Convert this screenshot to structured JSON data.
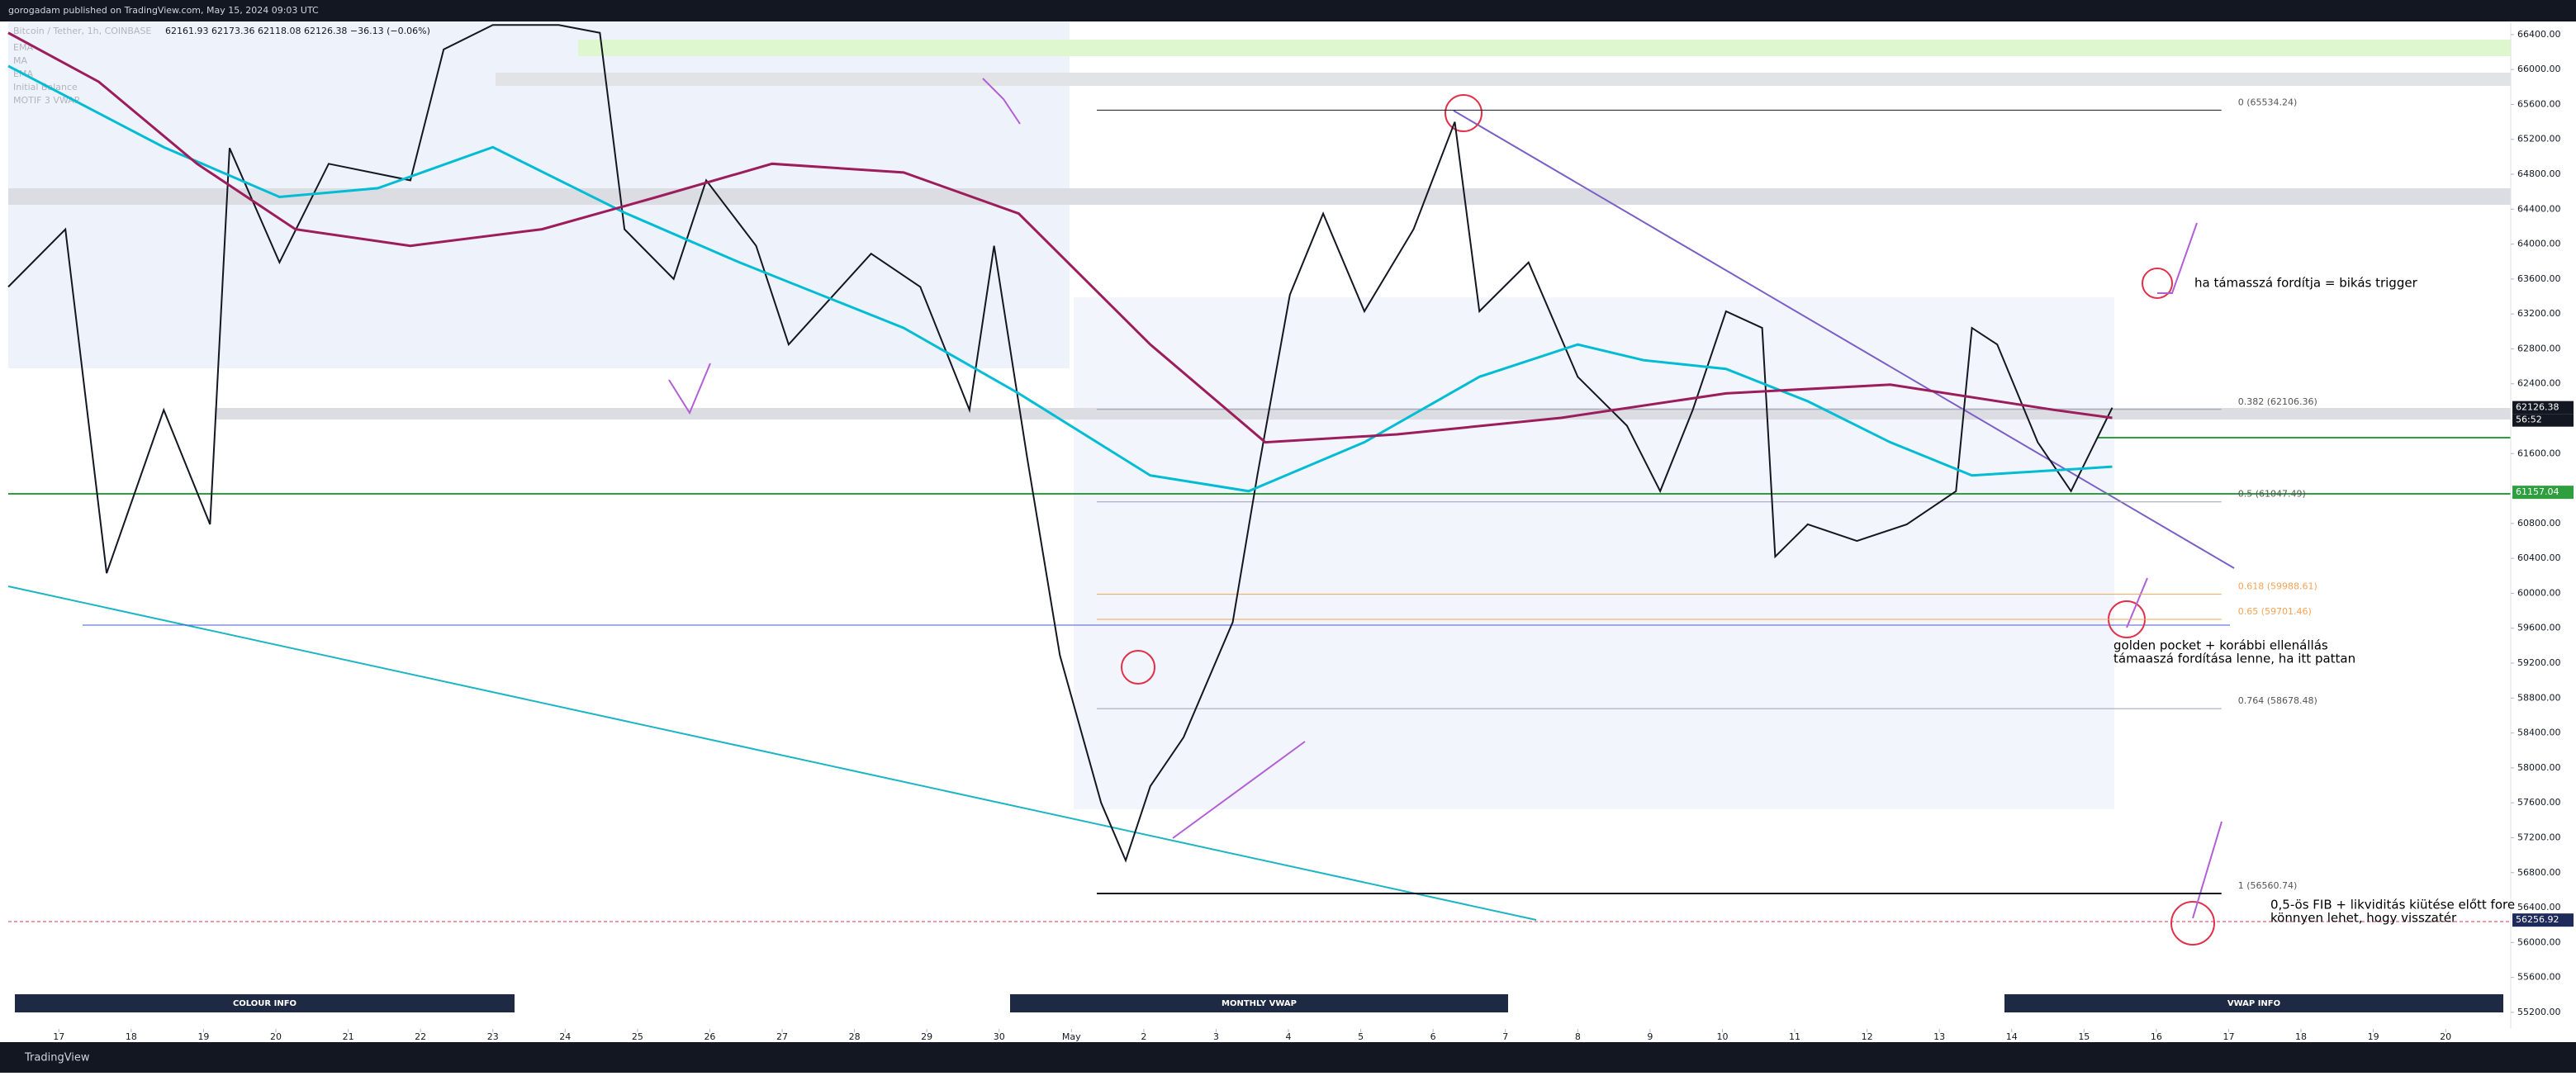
{
  "header": "gorogadam published on TradingView.com, May 15, 2024 09:03 UTC",
  "footer": "TradingView",
  "chart_data": {
    "type": "line",
    "symbol": "Bitcoin / Tether, 1h, COINBASE",
    "ohlc": "62161.93  62173.36  62118.08  62126.38  −36.13 (−0.06%)",
    "indicators": [
      "EMA",
      "MA",
      "EMA",
      "Initial Balance",
      "MOTIF 3 VWAP"
    ],
    "xlim": [
      16.3,
      50.9
    ],
    "ylim": [
      55010,
      66550
    ],
    "xticks": [
      17,
      18,
      19,
      20,
      21,
      22,
      23,
      24,
      25,
      26,
      27,
      28,
      29,
      30,
      {
        "value": 31,
        "label": "May"
      },
      {
        "value": 32,
        "label": "2"
      },
      {
        "value": 33,
        "label": "3"
      },
      {
        "value": 34,
        "label": "4"
      },
      {
        "value": 35,
        "label": "5"
      },
      {
        "value": 36,
        "label": "6"
      },
      {
        "value": 37,
        "label": "7"
      },
      {
        "value": 38,
        "label": "8"
      },
      {
        "value": 39,
        "label": "9"
      },
      {
        "value": 40,
        "label": "10"
      },
      {
        "value": 41,
        "label": "11"
      },
      {
        "value": 42,
        "label": "12"
      },
      {
        "value": 43,
        "label": "13"
      },
      {
        "value": 44,
        "label": "14"
      },
      {
        "value": 45,
        "label": "15"
      },
      {
        "value": 46,
        "label": "16"
      },
      {
        "value": 47,
        "label": "17"
      },
      {
        "value": 48,
        "label": "18"
      },
      {
        "value": 49,
        "label": "19"
      },
      {
        "value": 50,
        "label": "20"
      }
    ],
    "yticks": [
      {
        "value": 55200,
        "label": "55200.00"
      },
      {
        "value": 55600,
        "label": "55600.00"
      },
      {
        "value": 56000,
        "label": "56000.00"
      },
      {
        "value": 56400,
        "label": "56400.00"
      },
      {
        "value": 56800,
        "label": "56800.00"
      },
      {
        "value": 57200,
        "label": "57200.00"
      },
      {
        "value": 57600,
        "label": "57600.00"
      },
      {
        "value": 58000,
        "label": "58000.00"
      },
      {
        "value": 58400,
        "label": "58400.00"
      },
      {
        "value": 58800,
        "label": "58800.00"
      },
      {
        "value": 59200,
        "label": "59200.00"
      },
      {
        "value": 59600,
        "label": "59600.00"
      },
      {
        "value": 60000,
        "label": "60000.00"
      },
      {
        "value": 60400,
        "label": "60400.00"
      },
      {
        "value": 60800,
        "label": "60800.00"
      },
      {
        "value": 61600,
        "label": "61600.00"
      },
      {
        "value": 62400,
        "label": "62400.00"
      },
      {
        "value": 62800,
        "label": "62800.00"
      },
      {
        "value": 63200,
        "label": "63200.00"
      },
      {
        "value": 63600,
        "label": "63600.00"
      },
      {
        "value": 64000,
        "label": "64000.00"
      },
      {
        "value": 64400,
        "label": "64400.00"
      },
      {
        "value": 64800,
        "label": "64800.00"
      },
      {
        "value": 65200,
        "label": "65200.00"
      },
      {
        "value": 65600,
        "label": "65600.00"
      },
      {
        "value": 66000,
        "label": "66000.00"
      },
      {
        "value": 66400,
        "label": "66400.00"
      }
    ],
    "series": [
      {
        "color": "#131722",
        "x": [
          16.3,
          17.09,
          17.66,
          18.45,
          19.09,
          19.36,
          20.05,
          20.73,
          21.86,
          22.32,
          23.0,
          23.91,
          24.48,
          24.82,
          25.5,
          25.95,
          26.64,
          27.09,
          28.23,
          28.91,
          29.59,
          29.93,
          30.39,
          30.84,
          31.41,
          31.75,
          32.09,
          32.55,
          33.23,
          33.57,
          34.02,
          34.48,
          35.05,
          35.73,
          36.3,
          36.64,
          37.32,
          38.0,
          38.68,
          39.14,
          39.59,
          40.05,
          40.55,
          40.73,
          41.18,
          41.86,
          42.55,
          43.23,
          43.45,
          43.8,
          44.36,
          44.82,
          45.39
        ],
        "values": [
          63510,
          64170,
          60230,
          62100,
          60790,
          65100,
          63790,
          64920,
          64730,
          66230,
          66510,
          66510,
          66420,
          64170,
          63600,
          64730,
          63980,
          62850,
          63890,
          63510,
          62100,
          63980,
          61540,
          59290,
          57600,
          56940,
          57790,
          58350,
          59670,
          61350,
          63420,
          64350,
          63230,
          64170,
          65400,
          63230,
          63790,
          62480,
          61920,
          61170,
          62100,
          63230,
          63040,
          60420,
          60790,
          60600,
          60790,
          61170,
          63040,
          62850,
          61730,
          61170,
          62126.38
        ]
      },
      {
        "color": "#00bcd4",
        "x": [
          16.3,
          18.45,
          20.05,
          21.41,
          23.0,
          24.82,
          26.41,
          28.68,
          30.27,
          32.09,
          33.45,
          35.05,
          36.64,
          38.0,
          38.91,
          40.05,
          41.18,
          42.32,
          43.45,
          45.39
        ],
        "values": [
          66040,
          65110,
          64540,
          64640,
          65110,
          64360,
          63790,
          63040,
          62290,
          61350,
          61170,
          61730,
          62480,
          62850,
          62670,
          62570,
          62200,
          61730,
          61350,
          61450
        ]
      },
      {
        "color": "#9c1d5c",
        "x": [
          16.3,
          17.55,
          18.91,
          20.27,
          21.86,
          23.68,
          25.27,
          26.86,
          28.68,
          30.27,
          32.09,
          33.68,
          35.5,
          37.77,
          40.05,
          42.32,
          44.59,
          45.39
        ],
        "values": [
          66420,
          65860,
          64920,
          64170,
          63980,
          64170,
          64540,
          64920,
          64820,
          64350,
          62850,
          61730,
          61820,
          62010,
          62290,
          62390,
          62100,
          62010
        ]
      }
    ],
    "levels": [
      {
        "value": 65534.24,
        "label": "0 (65534.24)"
      },
      {
        "value": 62106.36,
        "label": "0.382 (62106.36)"
      },
      {
        "value": 61047.49,
        "label": "0.5 (61047.49)"
      },
      {
        "value": 59988.61,
        "label": "0.618 (59988.61)"
      },
      {
        "value": 59701.46,
        "label": "0.65 (59701.46)"
      },
      {
        "value": 58678.48,
        "label": "0.764 (58678.48)"
      },
      {
        "value": 56560.74,
        "label": "1 (56560.74)"
      }
    ],
    "last_price": 62126.38,
    "countdown": "56:52",
    "support_price": 61157.04,
    "low_price": 56256.92,
    "annotations": [
      "ha támasszá fordítja = bikás trigger",
      "golden pocket + korábbi ellenállás",
      "támaaszá fordítása lenne, ha itt pattan",
      "0,5-ös FIB + likviditás kiütése előtt fore",
      "könnyen lehet, hogy visszatér"
    ],
    "panels": [
      "COLOUR INFO",
      "MONTHLY VWAP",
      "VWAP INFO"
    ]
  }
}
